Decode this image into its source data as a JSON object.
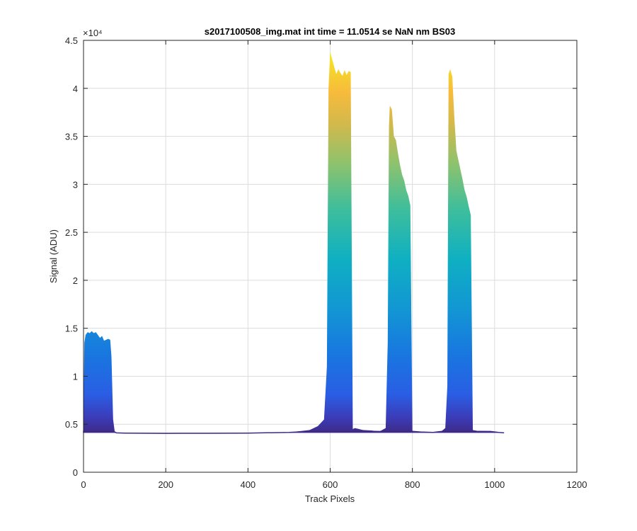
{
  "chart_data": {
    "type": "area",
    "title": "s2017100508_img.mat int time = 11.0514 se  NaN nm BS03",
    "xlabel": "Track Pixels",
    "ylabel": "Signal (ADU)",
    "xlim": [
      0,
      1200
    ],
    "ylim": [
      0,
      45000
    ],
    "x_ticks": [
      0,
      200,
      400,
      600,
      800,
      1000,
      1200
    ],
    "x_tick_labels": [
      "0",
      "200",
      "400",
      "600",
      "800",
      "1000",
      "1200"
    ],
    "y_ticks": [
      0,
      5000,
      10000,
      15000,
      20000,
      25000,
      30000,
      35000,
      40000,
      45000
    ],
    "y_tick_labels": [
      "0",
      "0.5",
      "1",
      "1.5",
      "2",
      "2.5",
      "3",
      "3.5",
      "4",
      "4.5"
    ],
    "y_exponent_label": "×10⁴",
    "grid": true,
    "baseline": 4100,
    "colormap": "parula",
    "envelope": {
      "x": [
        0,
        2,
        5,
        10,
        15,
        20,
        25,
        30,
        35,
        40,
        45,
        50,
        55,
        60,
        65,
        68,
        72,
        76,
        80,
        100,
        200,
        300,
        400,
        500,
        550,
        570,
        585,
        592,
        596,
        600,
        605,
        610,
        615,
        620,
        625,
        630,
        635,
        640,
        645,
        650,
        655,
        660,
        680,
        700,
        720,
        735,
        740,
        743,
        745,
        750,
        755,
        760,
        765,
        770,
        775,
        780,
        785,
        790,
        795,
        800,
        820,
        850,
        870,
        880,
        885,
        888,
        892,
        897,
        902,
        907,
        912,
        917,
        922,
        927,
        932,
        937,
        942,
        947,
        960,
        990,
        1010,
        1023
      ],
      "y": [
        6000,
        13500,
        14300,
        14600,
        14500,
        14700,
        14500,
        14600,
        14300,
        14000,
        14200,
        13700,
        13800,
        13900,
        13800,
        12000,
        5500,
        4200,
        4100,
        4080,
        4050,
        4060,
        4080,
        4150,
        4400,
        4800,
        5500,
        11000,
        40000,
        43800,
        43000,
        42200,
        41500,
        42000,
        41600,
        41300,
        41900,
        41400,
        41800,
        41700,
        4500,
        4600,
        4400,
        4350,
        4250,
        4600,
        13500,
        36000,
        38200,
        37800,
        35000,
        34600,
        33200,
        32000,
        31000,
        30400,
        29400,
        28800,
        27800,
        4300,
        4200,
        4150,
        4250,
        4600,
        9000,
        41500,
        42000,
        41200,
        37000,
        33500,
        32500,
        31500,
        30500,
        29400,
        28700,
        27700,
        26800,
        4400,
        4300,
        4250,
        4150,
        4100
      ]
    }
  }
}
